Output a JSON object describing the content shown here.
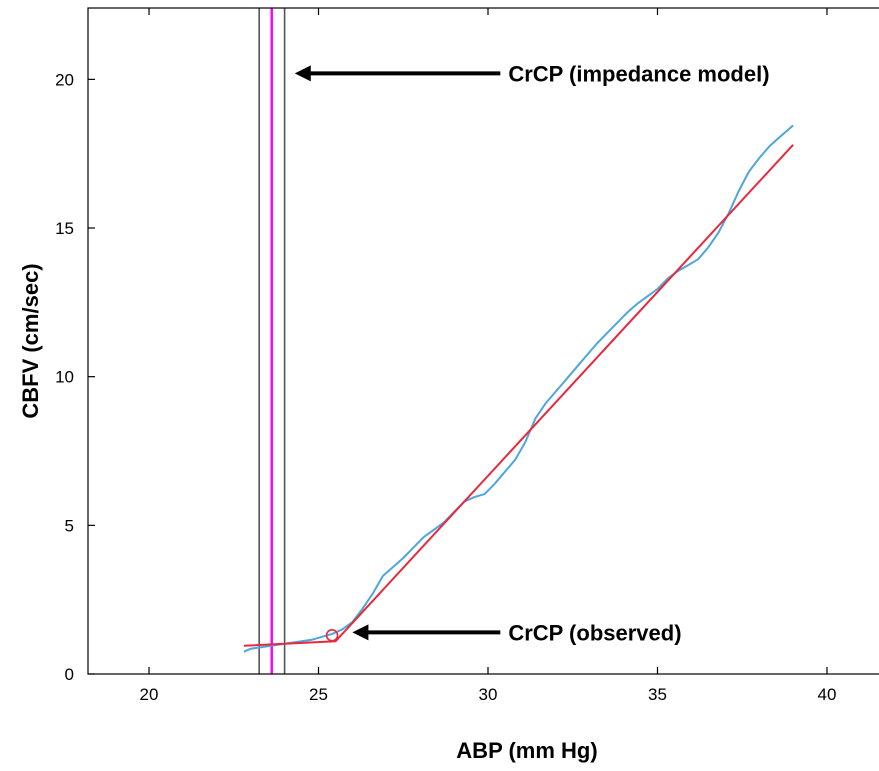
{
  "chart_data": {
    "type": "line",
    "title": "",
    "xlabel": "ABP (mm Hg)",
    "ylabel": "CBFV (cm/sec)",
    "xlim": [
      18.2,
      41.8
    ],
    "ylim": [
      0,
      22.4
    ],
    "xticks": [
      20,
      25,
      30,
      35,
      40
    ],
    "yticks": [
      0,
      5,
      10,
      15,
      20
    ],
    "grid": false,
    "series": [
      {
        "color": "#4ea6dc",
        "x": [
          22.8,
          23.0,
          23.3,
          23.6,
          23.9,
          24.2,
          24.5,
          24.8,
          25.1,
          25.4,
          25.7,
          26.0,
          26.3,
          26.6,
          26.9,
          27.2,
          27.5,
          27.8,
          28.1,
          28.4,
          28.7,
          29.0,
          29.3,
          29.6,
          29.9,
          30.2,
          30.5,
          30.8,
          31.1,
          31.4,
          31.7,
          32.0,
          32.3,
          32.6,
          32.9,
          33.2,
          33.5,
          33.8,
          34.1,
          34.4,
          34.7,
          35.0,
          35.3,
          35.6,
          35.9,
          36.2,
          36.5,
          36.8,
          37.1,
          37.4,
          37.7,
          38.0,
          38.3,
          38.6,
          39.0
        ],
        "y": [
          0.75,
          0.85,
          0.9,
          0.95,
          1.0,
          1.05,
          1.1,
          1.15,
          1.25,
          1.35,
          1.5,
          1.75,
          2.2,
          2.7,
          3.3,
          3.6,
          3.9,
          4.25,
          4.6,
          4.85,
          5.1,
          5.45,
          5.8,
          5.95,
          6.05,
          6.4,
          6.8,
          7.2,
          7.8,
          8.6,
          9.1,
          9.5,
          9.9,
          10.3,
          10.7,
          11.1,
          11.45,
          11.8,
          12.15,
          12.45,
          12.7,
          12.95,
          13.3,
          13.55,
          13.75,
          13.95,
          14.35,
          14.85,
          15.5,
          16.25,
          16.9,
          17.35,
          17.75,
          18.05,
          18.45
        ]
      },
      {
        "color": "#e8283c",
        "x": [
          22.8,
          25.5,
          39.0
        ],
        "y": [
          0.95,
          1.1,
          17.8
        ]
      }
    ],
    "vlines": [
      {
        "x": 23.25,
        "color": "#555555"
      },
      {
        "x": 23.62,
        "color": "#ff00ff"
      },
      {
        "x": 24.0,
        "color": "#555555"
      }
    ],
    "markers": [
      {
        "x": 25.4,
        "y": 1.3,
        "shape": "circle",
        "color": "#e8283c"
      }
    ],
    "annotations": [
      {
        "text": "CrCP (impedance model)",
        "arrow_tip": [
          24.3,
          20.2
        ],
        "text_x": 30.6
      },
      {
        "text": "CrCP (observed)",
        "arrow_tip": [
          26.0,
          1.4
        ],
        "text_x": 30.6
      }
    ]
  }
}
